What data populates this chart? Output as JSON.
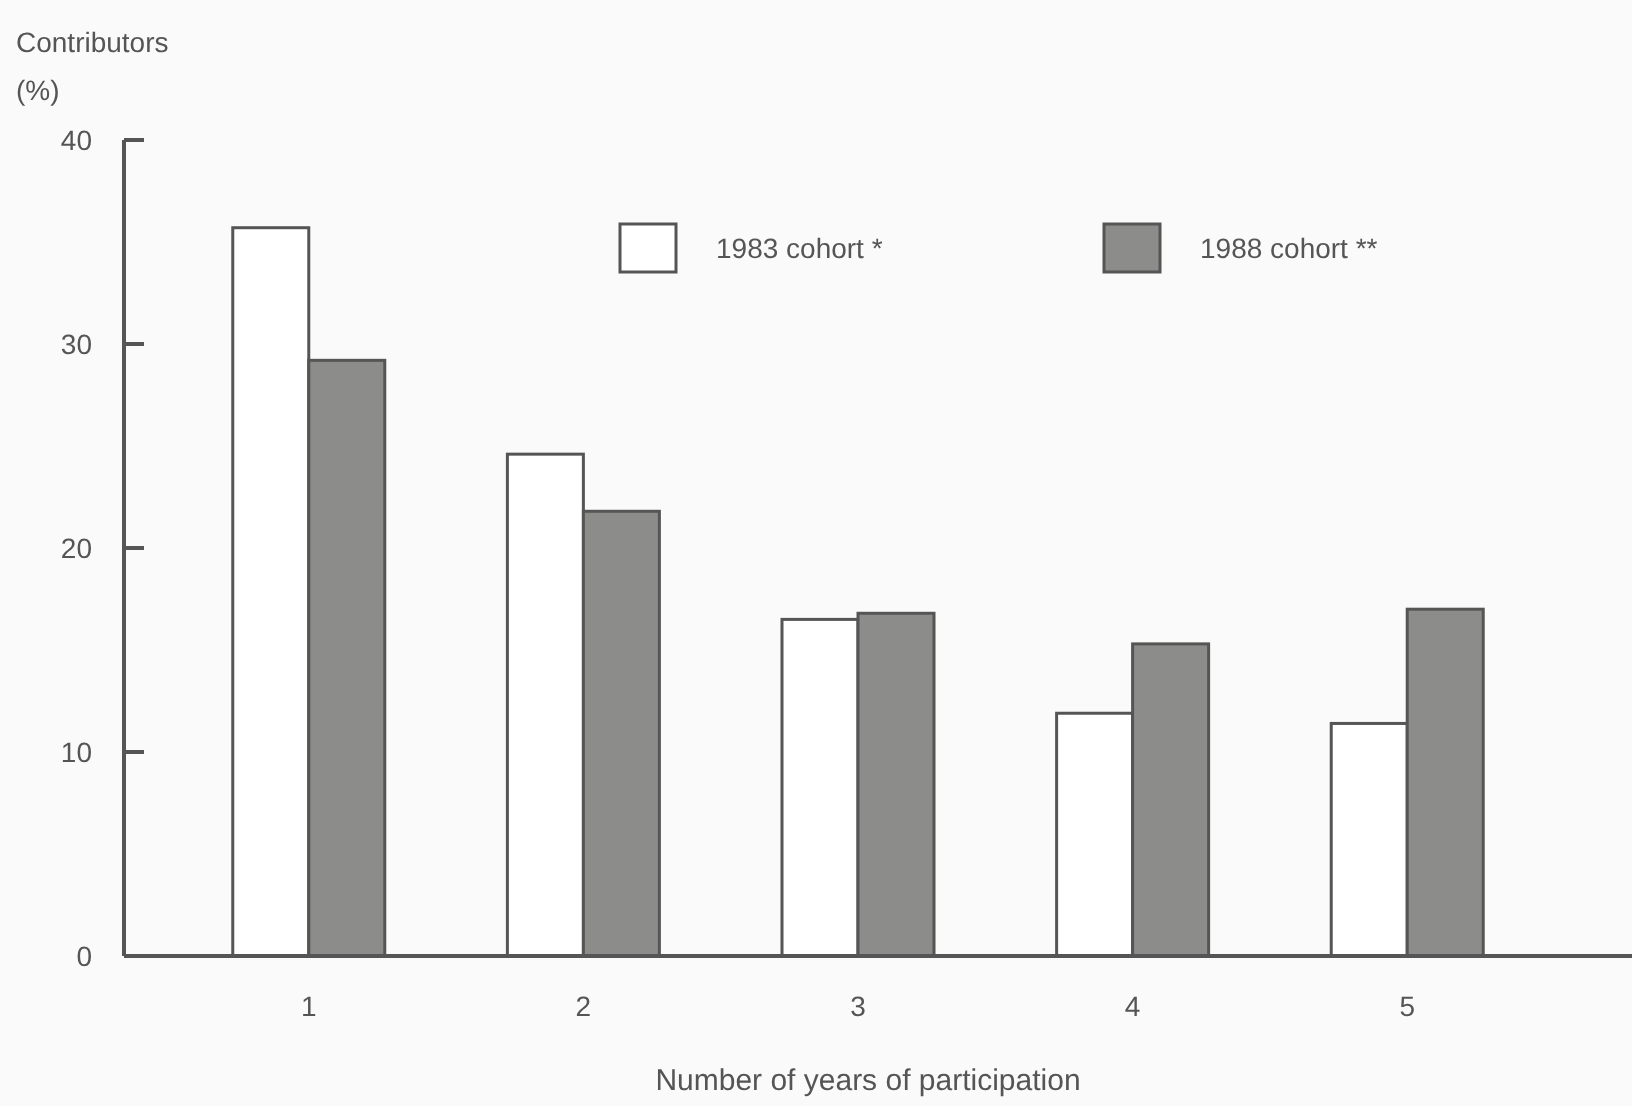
{
  "chart_data": {
    "type": "bar",
    "ylabel": "Contributors\n(%)",
    "xlabel": "Number of years of participation",
    "categories": [
      "1",
      "2",
      "3",
      "4",
      "5"
    ],
    "series": [
      {
        "name": "1983 cohort *",
        "color": "#ffffff",
        "values": [
          35.7,
          24.6,
          16.5,
          11.9,
          11.4
        ]
      },
      {
        "name": "1988 cohort **",
        "color": "#8c8c8a",
        "values": [
          29.2,
          21.8,
          16.8,
          15.3,
          17.0
        ]
      }
    ],
    "ylim": [
      0,
      40
    ],
    "yticks": [
      0,
      10,
      20,
      30,
      40
    ],
    "legend": "top right"
  }
}
